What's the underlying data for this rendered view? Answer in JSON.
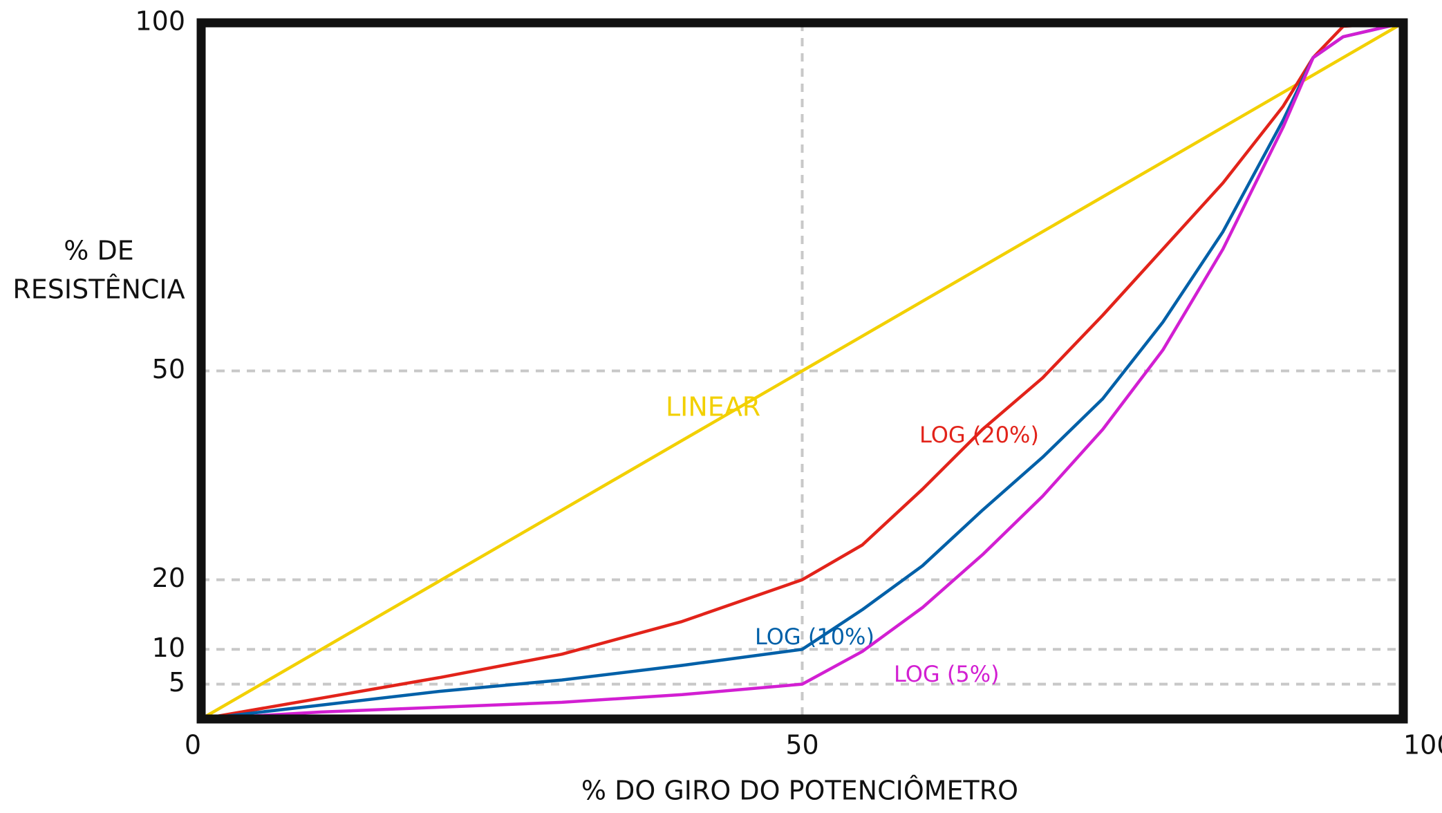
{
  "chart_data": {
    "type": "line",
    "xlabel": "% DO GIRO DO POTENCIÔMETRO",
    "ylabel": [
      "% DE",
      "RESISTÊNCIA"
    ],
    "x": [
      0,
      10,
      20,
      30,
      40,
      50,
      55,
      60,
      65,
      70,
      75,
      80,
      85,
      90,
      92.5,
      95,
      100
    ],
    "series": [
      {
        "name": "LINEAR",
        "color": "#f2d000",
        "values": [
          0,
          10,
          20,
          30,
          40,
          50,
          55,
          60,
          65,
          70,
          75,
          80,
          85,
          90,
          92.5,
          95,
          100
        ]
      },
      {
        "name": "LOG (20%)",
        "color": "#e2231a",
        "values": [
          0,
          3,
          6,
          9.3,
          14,
          20,
          25,
          33,
          41.6,
          49,
          58,
          67.5,
          77,
          88,
          95,
          99.5,
          100
        ]
      },
      {
        "name": "LOG (10%)",
        "color": "#0060a8",
        "values": [
          0,
          2,
          4,
          5.6,
          7.7,
          10,
          15.7,
          22,
          30,
          37.6,
          46,
          57,
          70,
          86,
          95,
          98,
          100
        ]
      },
      {
        "name": "LOG (5%)",
        "color": "#d21fd2",
        "values": [
          0,
          1,
          1.7,
          2.4,
          3.5,
          5,
          9.7,
          16,
          23.6,
          32,
          41.6,
          53,
          67.5,
          85,
          95,
          98,
          100
        ]
      }
    ],
    "xlim": [
      0,
      100
    ],
    "ylim": [
      0,
      100
    ],
    "xticks": [
      0,
      50,
      100
    ],
    "yticks": [
      5,
      10,
      20,
      50,
      100
    ],
    "grid": true
  }
}
